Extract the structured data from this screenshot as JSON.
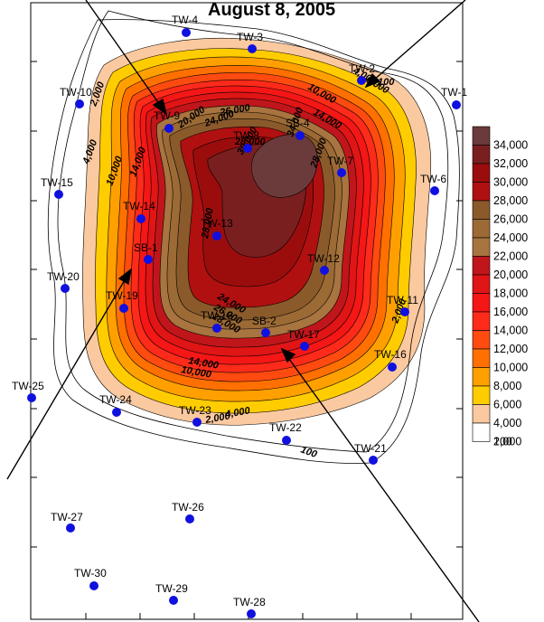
{
  "title": "August 8, 2005",
  "legend": {
    "levels": [
      {
        "label": "34,000",
        "color": "#6b3a3a"
      },
      {
        "label": "32,000",
        "color": "#7a1f1f"
      },
      {
        "label": "30,000",
        "color": "#9b0d0d"
      },
      {
        "label": "28,000",
        "color": "#b01010"
      },
      {
        "label": "26,000",
        "color": "#8b5a2b"
      },
      {
        "label": "24,000",
        "color": "#9c6a35"
      },
      {
        "label": "22,000",
        "color": "#a8743f"
      },
      {
        "label": "20,000",
        "color": "#c0161b"
      },
      {
        "label": "18,000",
        "color": "#e01515"
      },
      {
        "label": "16,000",
        "color": "#f51616"
      },
      {
        "label": "14,000",
        "color": "#ff2b1a"
      },
      {
        "label": "12,000",
        "color": "#ff4a10"
      },
      {
        "label": "10,000",
        "color": "#ff7000"
      },
      {
        "label": "8,000",
        "color": "#ffa000"
      },
      {
        "label": "6,000",
        "color": "#ffcc00"
      },
      {
        "label": "4,000",
        "color": "#fbc9a0"
      },
      {
        "label": "2,000",
        "color": "#ffffff"
      },
      {
        "label": "100",
        "color": "#ffffff"
      }
    ]
  },
  "wells": [
    {
      "name": "TW-4"
    },
    {
      "name": "TW-3"
    },
    {
      "name": "TW-2"
    },
    {
      "name": "TW-1"
    },
    {
      "name": "TW-10"
    },
    {
      "name": "TW-9"
    },
    {
      "name": "SB-4"
    },
    {
      "name": "TW-8"
    },
    {
      "name": "TW-7"
    },
    {
      "name": "TW-6"
    },
    {
      "name": "TW-15"
    },
    {
      "name": "TW-14"
    },
    {
      "name": "TW-13"
    },
    {
      "name": "SB-1"
    },
    {
      "name": "TW-12"
    },
    {
      "name": "TW-20"
    },
    {
      "name": "TW-19"
    },
    {
      "name": "TW-18"
    },
    {
      "name": "SB-2"
    },
    {
      "name": "TW-17"
    },
    {
      "name": "TW-11"
    },
    {
      "name": "TW-16"
    },
    {
      "name": "TW-25"
    },
    {
      "name": "TW-24"
    },
    {
      "name": "TW-23"
    },
    {
      "name": "TW-22"
    },
    {
      "name": "TW-21"
    },
    {
      "name": "TW-27"
    },
    {
      "name": "TW-26"
    },
    {
      "name": "TW-30"
    },
    {
      "name": "TW-29"
    },
    {
      "name": "TW-28"
    }
  ],
  "contour_labels": [
    {
      "text": "2,000"
    },
    {
      "text": "4,000"
    },
    {
      "text": "10,000"
    },
    {
      "text": "14,000"
    },
    {
      "text": "20,000"
    },
    {
      "text": "24,000"
    },
    {
      "text": "26,000"
    },
    {
      "text": "28,000"
    },
    {
      "text": "30,000"
    },
    {
      "text": "34,000"
    },
    {
      "text": "100"
    },
    {
      "text": "4,000"
    },
    {
      "text": "6,000"
    },
    {
      "text": "10,000"
    },
    {
      "text": "14,000"
    },
    {
      "text": "28,000"
    },
    {
      "text": "24,000"
    },
    {
      "text": "26,000"
    },
    {
      "text": "28,000"
    },
    {
      "text": "28,000"
    },
    {
      "text": "14,000"
    },
    {
      "text": "10,000"
    },
    {
      "text": "4,000"
    },
    {
      "text": "2,000"
    },
    {
      "text": "100"
    },
    {
      "text": "2,000"
    }
  ],
  "colors": {
    "well_marker": "#1010e0",
    "frame": "#000000"
  }
}
